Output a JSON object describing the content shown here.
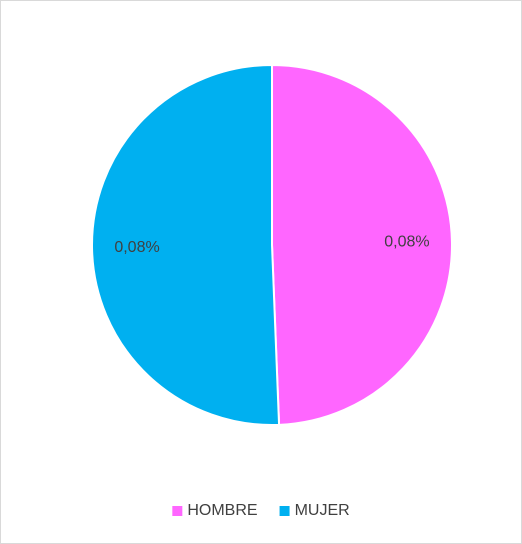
{
  "chart_data": {
    "type": "pie",
    "categories": [
      "HOMBRE",
      "MUJER"
    ],
    "values": [
      0.079,
      0.081
    ],
    "value_labels": [
      "0,08%",
      "0,08%"
    ],
    "colors": [
      "#ff66ff",
      "#00b0f0"
    ],
    "legend": "bottom"
  }
}
